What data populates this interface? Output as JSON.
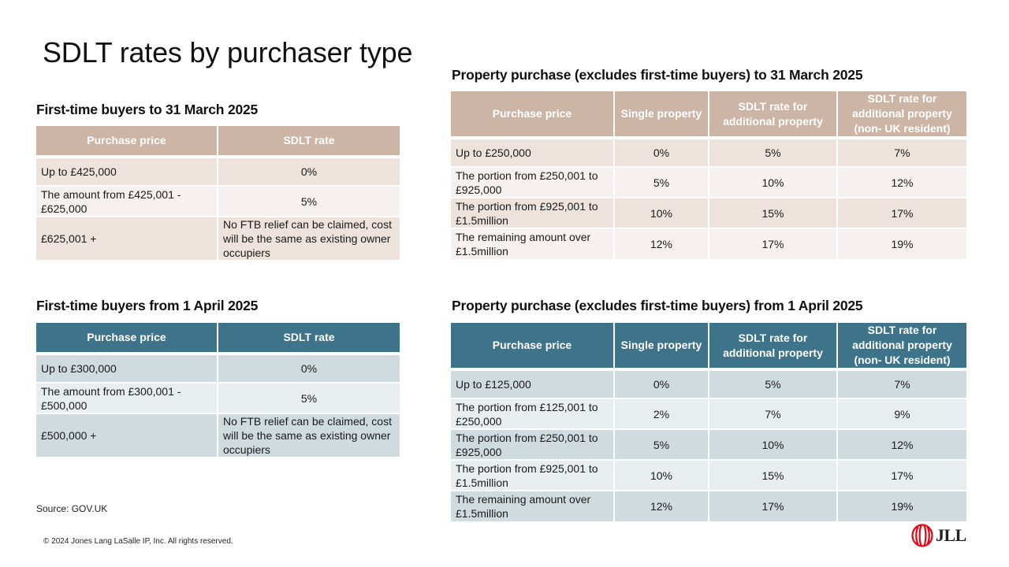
{
  "title": "SDLT rates by purchaser type",
  "ftb_before": {
    "heading": "First-time buyers to 31 March 2025",
    "headers": [
      "Purchase price",
      "SDLT rate"
    ],
    "rows": [
      [
        "Up to £425,000",
        "0%"
      ],
      [
        "The amount from £425,001 - £625,000",
        "5%"
      ],
      [
        "£625,001 +",
        "No FTB relief can be claimed, cost will be the same as existing owner occupiers"
      ]
    ]
  },
  "ftb_after": {
    "heading": "First-time buyers from 1 April 2025",
    "headers": [
      "Purchase price",
      "SDLT rate"
    ],
    "rows": [
      [
        "Up to £300,000",
        "0%"
      ],
      [
        "The amount from £300,001 - £500,000",
        "5%"
      ],
      [
        "£500,000 +",
        "No FTB relief can be claimed, cost will be the same as existing owner occupiers"
      ]
    ]
  },
  "prop_before": {
    "heading": "Property purchase (excludes first-time buyers) to 31 March 2025",
    "headers": [
      "Purchase price",
      "Single property",
      "SDLT rate for additional property",
      "SDLT rate for additional property (non- UK resident)"
    ],
    "rows": [
      [
        "Up to £250,000",
        "0%",
        "5%",
        "7%"
      ],
      [
        "The portion from £250,001 to £925,000",
        "5%",
        "10%",
        "12%"
      ],
      [
        "The portion from £925,001 to £1.5million",
        "10%",
        "15%",
        "17%"
      ],
      [
        "The remaining amount over £1.5million",
        "12%",
        "17%",
        "19%"
      ]
    ]
  },
  "prop_after": {
    "heading": "Property purchase (excludes first-time buyers) from 1 April 2025",
    "headers": [
      "Purchase price",
      "Single property",
      "SDLT rate for additional property",
      "SDLT rate for additional property (non- UK resident)"
    ],
    "rows": [
      [
        "Up to £125,000",
        "0%",
        "5%",
        "7%"
      ],
      [
        "The portion from £125,001 to £250,000",
        "2%",
        "7%",
        "9%"
      ],
      [
        "The portion from £250,001 to £925,000",
        "5%",
        "10%",
        "12%"
      ],
      [
        "The portion from £925,001 to £1.5million",
        "10%",
        "15%",
        "17%"
      ],
      [
        "The remaining amount over £1.5million",
        "12%",
        "17%",
        "19%"
      ]
    ]
  },
  "source": "Source: GOV.UK",
  "copyright": "© 2024 Jones Lang LaSalle IP, Inc. All rights reserved.",
  "logo": {
    "text": "JLL",
    "icon": "jll-logo-icon",
    "color": "#e30613"
  },
  "colors": {
    "tan_header": "#cdb5a5",
    "teal_header": "#3e7489"
  }
}
